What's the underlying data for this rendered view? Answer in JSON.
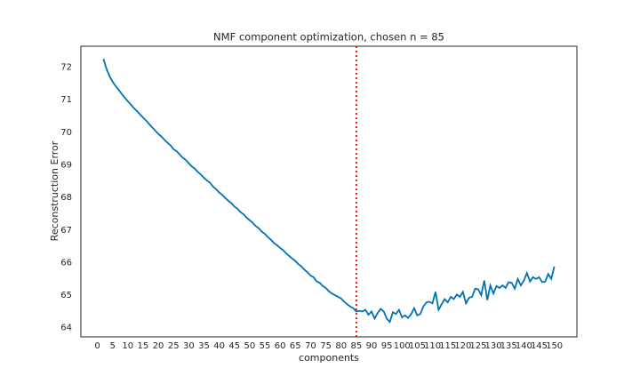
{
  "chart_data": {
    "type": "line",
    "title": "NMF component optimization, chosen n = 85",
    "x_label": "components",
    "y_label": "Reconstruction Error",
    "x": [
      2,
      3,
      4,
      5,
      6,
      7,
      8,
      9,
      10,
      11,
      12,
      13,
      14,
      15,
      16,
      17,
      18,
      19,
      20,
      21,
      22,
      23,
      24,
      25,
      26,
      27,
      28,
      29,
      30,
      31,
      32,
      33,
      34,
      35,
      36,
      37,
      38,
      39,
      40,
      41,
      42,
      43,
      44,
      45,
      46,
      47,
      48,
      49,
      50,
      51,
      52,
      53,
      54,
      55,
      56,
      57,
      58,
      59,
      60,
      61,
      62,
      63,
      64,
      65,
      66,
      67,
      68,
      69,
      70,
      71,
      72,
      73,
      74,
      75,
      76,
      77,
      78,
      79,
      80,
      81,
      82,
      83,
      84,
      85,
      86,
      87,
      88,
      89,
      90,
      91,
      92,
      93,
      94,
      95,
      96,
      97,
      98,
      99,
      100,
      101,
      102,
      103,
      104,
      105,
      106,
      107,
      108,
      109,
      110,
      111,
      112,
      113,
      114,
      115,
      116,
      117,
      118,
      119,
      120,
      121,
      122,
      123,
      124,
      125,
      126,
      127,
      128,
      129,
      130,
      131,
      132,
      133,
      134,
      135,
      136,
      137,
      138,
      139,
      140,
      141,
      142,
      143,
      144,
      145,
      146,
      147,
      148,
      149,
      150
    ],
    "series": [
      {
        "name": "Reconstruction Error",
        "color": "#0072b2",
        "values": [
          72.25,
          71.95,
          71.72,
          71.55,
          71.42,
          71.3,
          71.18,
          71.06,
          70.95,
          70.85,
          70.74,
          70.65,
          70.55,
          70.45,
          70.36,
          70.25,
          70.15,
          70.05,
          69.95,
          69.87,
          69.77,
          69.68,
          69.6,
          69.48,
          69.42,
          69.32,
          69.22,
          69.15,
          69.05,
          68.95,
          68.88,
          68.78,
          68.7,
          68.6,
          68.52,
          68.45,
          68.33,
          68.25,
          68.15,
          68.08,
          67.98,
          67.9,
          67.82,
          67.72,
          67.65,
          67.55,
          67.48,
          67.38,
          67.3,
          67.22,
          67.12,
          67.05,
          66.95,
          66.88,
          66.78,
          66.7,
          66.6,
          66.53,
          66.45,
          66.38,
          66.28,
          66.2,
          66.12,
          66.05,
          65.95,
          65.88,
          65.78,
          65.7,
          65.6,
          65.55,
          65.42,
          65.38,
          65.28,
          65.22,
          65.12,
          65.05,
          65.0,
          64.95,
          64.9,
          64.8,
          64.72,
          64.65,
          64.6,
          64.5,
          64.52,
          64.5,
          64.55,
          64.4,
          64.5,
          64.28,
          64.45,
          64.58,
          64.5,
          64.28,
          64.18,
          64.48,
          64.42,
          64.55,
          64.32,
          64.38,
          64.3,
          64.42,
          64.6,
          64.38,
          64.42,
          64.65,
          64.78,
          64.8,
          64.75,
          65.1,
          64.55,
          64.72,
          64.88,
          64.78,
          64.95,
          64.88,
          65.02,
          64.95,
          65.1,
          64.75,
          64.92,
          64.95,
          65.2,
          65.18,
          65.0,
          65.45,
          64.85,
          65.3,
          65.05,
          65.28,
          65.22,
          65.3,
          65.22,
          65.4,
          65.38,
          65.2,
          65.5,
          65.3,
          65.45,
          65.68,
          65.42,
          65.55,
          65.5,
          65.55,
          65.4,
          65.42,
          65.65,
          65.5,
          65.88
        ]
      }
    ],
    "vline": {
      "x": 85,
      "color": "#e00000"
    },
    "xlim": [
      -5.4,
      157.4
    ],
    "ylim": [
      63.72,
      72.64
    ],
    "xticks": [
      0,
      5,
      10,
      15,
      20,
      25,
      30,
      35,
      40,
      45,
      50,
      55,
      60,
      65,
      70,
      75,
      80,
      85,
      90,
      95,
      100,
      105,
      110,
      115,
      120,
      125,
      130,
      135,
      140,
      145,
      150
    ],
    "yticks": [
      64,
      65,
      66,
      67,
      68,
      69,
      70,
      71,
      72
    ],
    "grid": false
  }
}
